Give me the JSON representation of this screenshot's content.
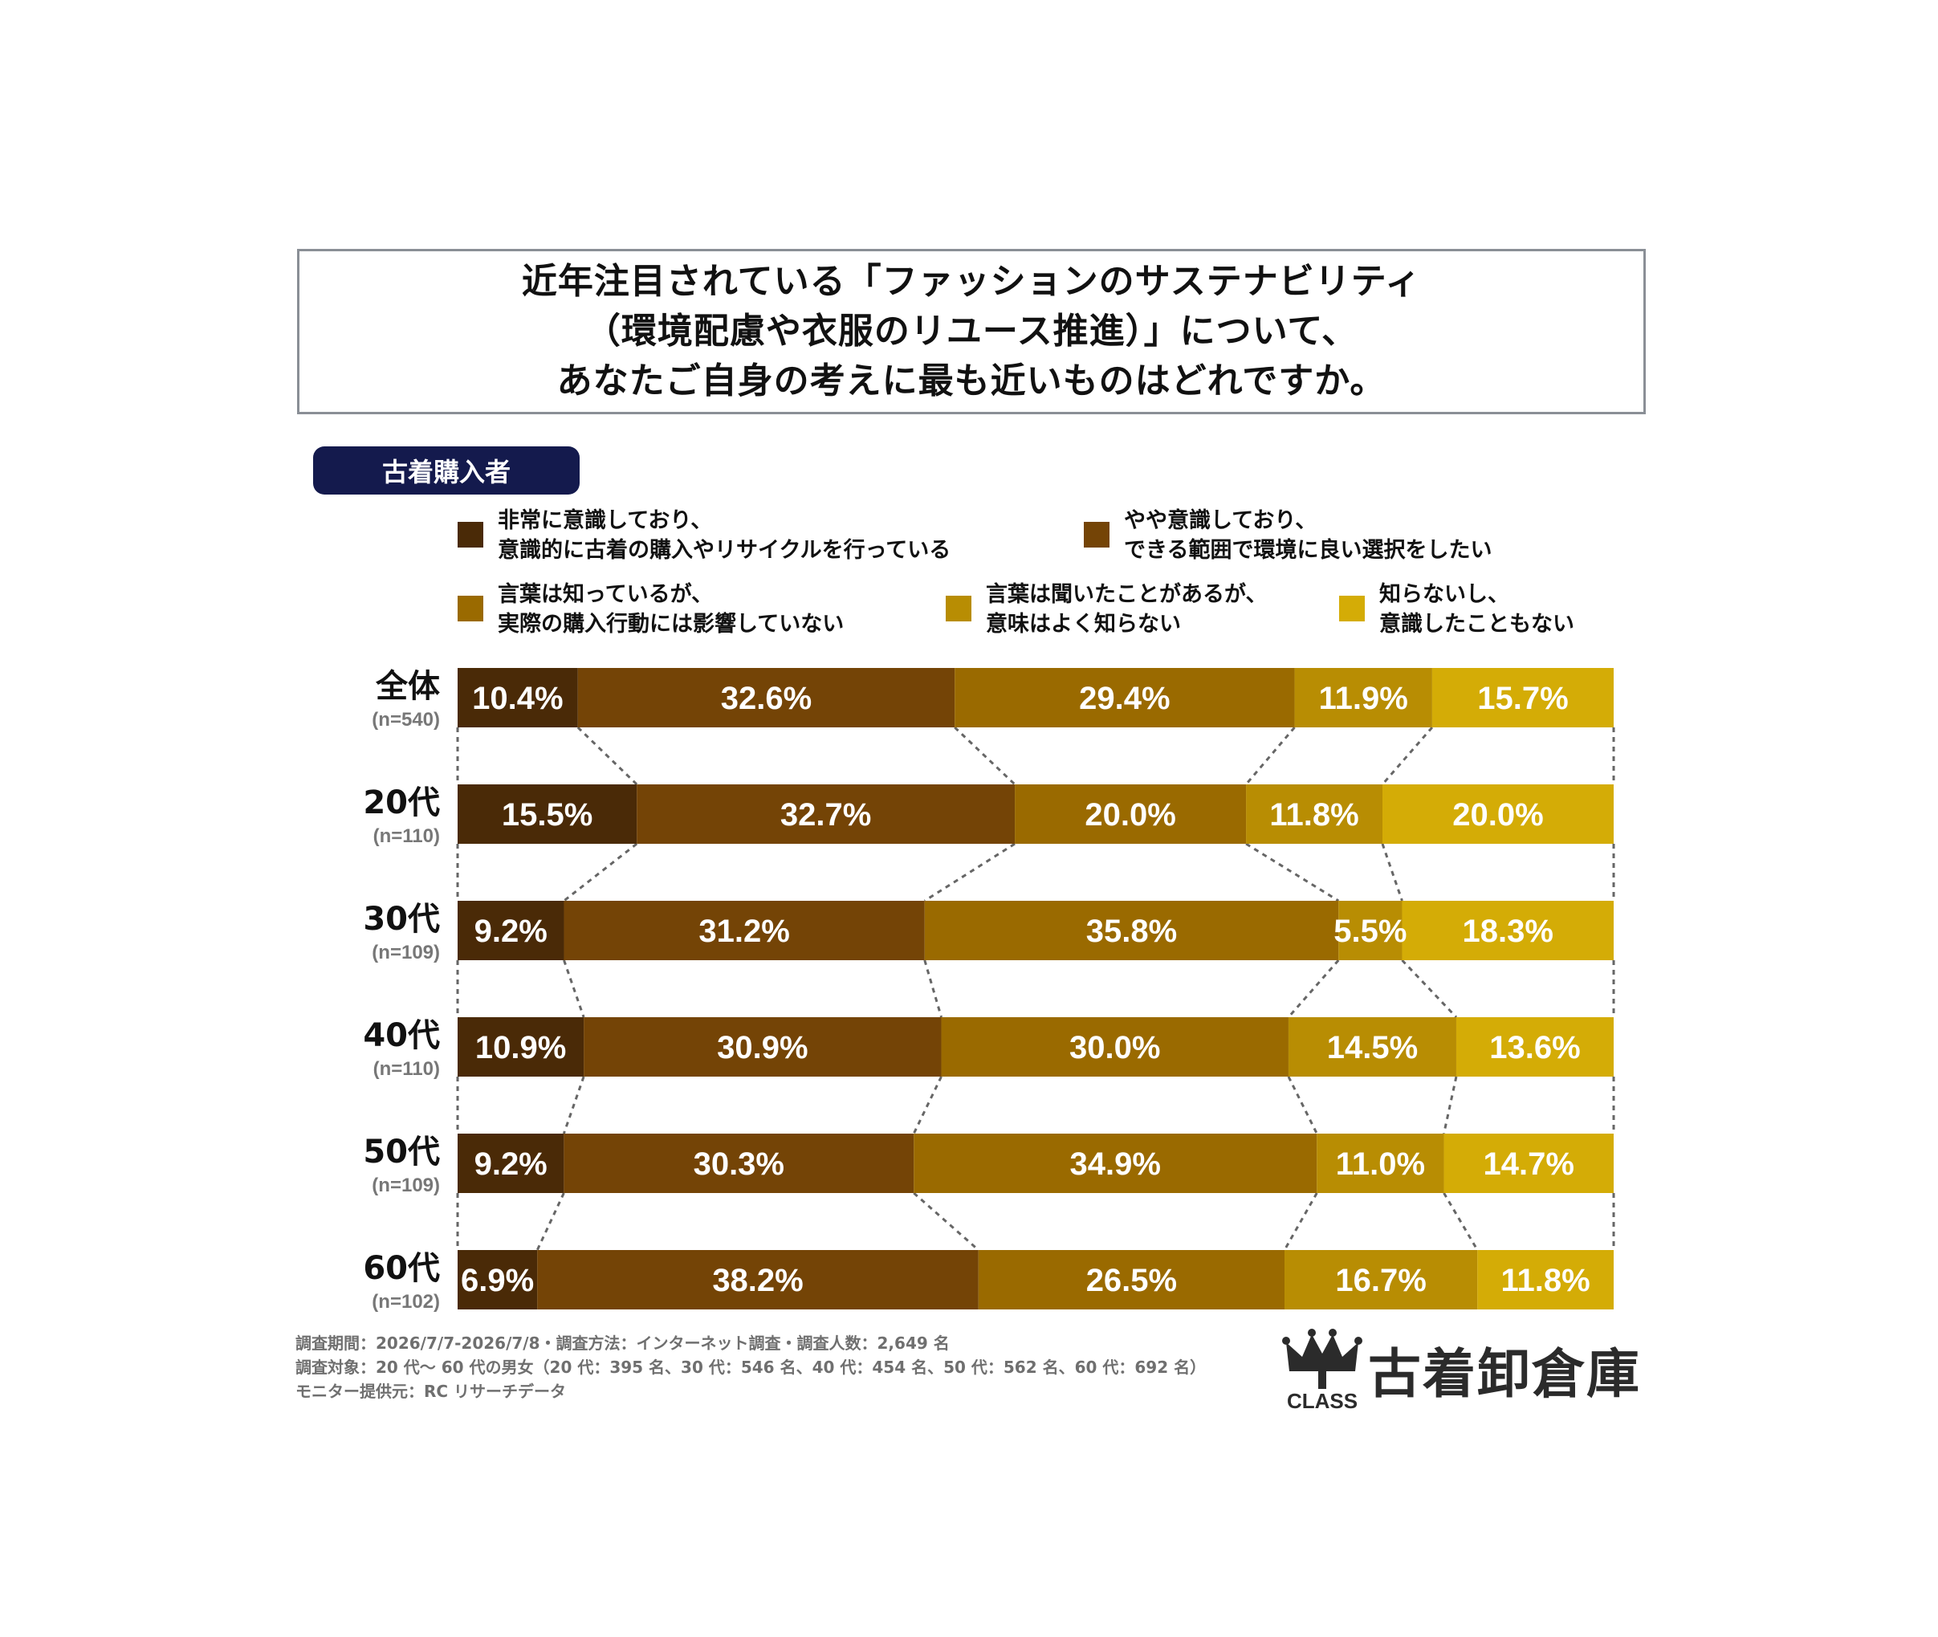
{
  "title": {
    "lines": [
      "近年注目されている「ファッションのサステナビリティ",
      "（環境配慮や衣服のリユース推進）」について、",
      "あなたご自身の考えに最も近いものはどれですか。"
    ]
  },
  "segment_label": "古着購入者",
  "legend": [
    {
      "lines": [
        "非常に意識しており、",
        "意識的に古着の購入やリサイクルを行っている"
      ],
      "color": "#4a2a07"
    },
    {
      "lines": [
        "やや意識しており、",
        "できる範囲で環境に良い選択をしたい"
      ],
      "color": "#744406"
    },
    {
      "lines": [
        "言葉は知っているが、",
        "実際の購入行動には影響していない"
      ],
      "color": "#9a6a00"
    },
    {
      "lines": [
        "言葉は聞いたことがあるが、",
        "意味はよく知らない"
      ],
      "color": "#b88d03"
    },
    {
      "lines": [
        "知らないし、",
        "意識したこともない"
      ],
      "color": "#d4ac06"
    }
  ],
  "chart_data": {
    "type": "bar",
    "orientation": "horizontal",
    "stacked": true,
    "normalized": true,
    "categories": [
      "全体",
      "20代",
      "30代",
      "40代",
      "50代",
      "60代"
    ],
    "sample_sizes": [
      "(n=540)",
      "(n=110)",
      "(n=109)",
      "(n=110)",
      "(n=109)",
      "(n=102)"
    ],
    "series": [
      {
        "name": "非常に意識しており、意識的に古着の購入やリサイクルを行っている",
        "values": [
          10.4,
          15.5,
          9.2,
          10.9,
          9.2,
          6.9
        ]
      },
      {
        "name": "やや意識しており、できる範囲で環境に良い選択をしたい",
        "values": [
          32.6,
          32.7,
          31.2,
          30.9,
          30.3,
          38.2
        ]
      },
      {
        "name": "言葉は知っているが、実際の購入行動には影響していない",
        "values": [
          29.4,
          20.0,
          35.8,
          30.0,
          34.9,
          26.5
        ]
      },
      {
        "name": "言葉は聞いたことがあるが、意味はよく知らない",
        "values": [
          11.9,
          11.8,
          5.5,
          14.5,
          11.0,
          16.7
        ]
      },
      {
        "name": "知らないし、意識したこともない",
        "values": [
          15.7,
          20.0,
          18.3,
          13.6,
          14.7,
          11.8
        ]
      }
    ],
    "value_labels": [
      [
        "10.4%",
        "32.6%",
        "29.4%",
        "11.9%",
        "15.7%"
      ],
      [
        "15.5%",
        "32.7%",
        "20.0%",
        "11.8%",
        "20.0%"
      ],
      [
        "9.2%",
        "31.2%",
        "35.8%",
        "5.5%",
        "18.3%"
      ],
      [
        "10.9%",
        "30.9%",
        "30.0%",
        "14.5%",
        "13.6%"
      ],
      [
        "9.2%",
        "30.3%",
        "34.9%",
        "11.0%",
        "14.7%"
      ],
      [
        "6.9%",
        "38.2%",
        "26.5%",
        "16.7%",
        "11.8%"
      ]
    ],
    "connector_lines": "dotted"
  },
  "footnotes": [
    "調査期間：2026/7/7-2026/7/8・調査方法：インターネット調査・調査人数：2,649 名",
    "調査対象：20 代～ 60 代の男女（20 代：395 名、30 代：546 名、40 代：454 名、50 代：562 名、60 代：692 名）",
    "モニター提供元：RC リサーチデータ"
  ],
  "logo": {
    "brand": "古着卸倉庫",
    "mark_text": "CLASS"
  }
}
